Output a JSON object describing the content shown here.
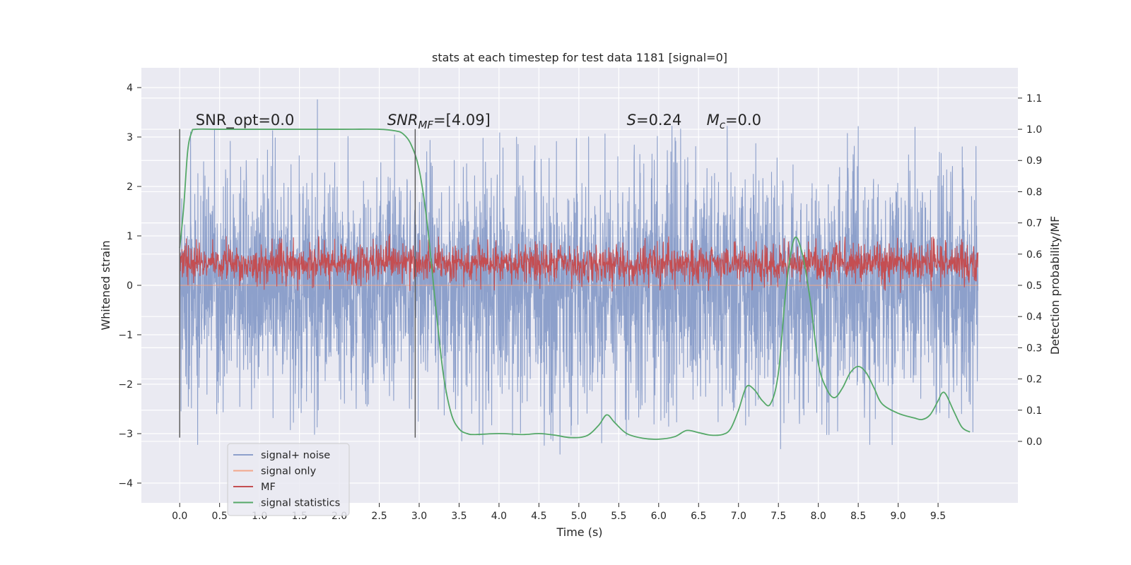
{
  "chart_data": {
    "type": "line",
    "title": "stats at each timestep for test data 1181 [signal=0]",
    "xlabel": "Time (s)",
    "ylabel_left": "Whitened strain",
    "ylabel_right": "Detection probability/MF",
    "xlim": [
      -0.48,
      10.5
    ],
    "ylim_left": [
      -4.4,
      4.4
    ],
    "ylim_right": [
      -0.197,
      1.197
    ],
    "grid": true,
    "xticks": [
      "0.0",
      "0.5",
      "1.0",
      "1.5",
      "2.0",
      "2.5",
      "3.0",
      "3.5",
      "4.0",
      "4.5",
      "5.0",
      "5.5",
      "6.0",
      "6.5",
      "7.0",
      "7.5",
      "8.0",
      "8.5",
      "9.0",
      "9.5"
    ],
    "yticks_left": [
      "−4",
      "−3",
      "−2",
      "−1",
      "0",
      "1",
      "2",
      "3",
      "4"
    ],
    "yticks_right": [
      "0.0",
      "0.1",
      "0.2",
      "0.3",
      "0.4",
      "0.5",
      "0.6",
      "0.7",
      "0.8",
      "0.9",
      "1.0",
      "1.1"
    ],
    "legend_placement": "lower-left",
    "annotations": [
      {
        "text": "SNR_opt=0.0",
        "x": 0.2,
        "y": 3.2
      },
      {
        "text": "SNR",
        "sub": "MF",
        "rest": "=[4.09]",
        "x": 2.6,
        "y": 3.2
      },
      {
        "text": "S",
        "rest": "=0.24",
        "x": 5.6,
        "y": 3.2
      },
      {
        "text": "M",
        "sub": "c",
        "rest": "=0.0",
        "x": 6.6,
        "y": 3.2
      }
    ],
    "vertical_lines": [
      {
        "x": 0.0,
        "y_from": -3.08,
        "y_to": 3.16
      },
      {
        "x": 2.95,
        "y_from": -3.08,
        "y_to": 3.16
      }
    ],
    "series": [
      {
        "name": "signal+ noise",
        "color": "#8da0cb",
        "axis": "left",
        "kind": "noise-band",
        "x_range": [
          0.0,
          10.0
        ],
        "typical_abs": 1.3,
        "max_abs": 4.0
      },
      {
        "name": "signal only",
        "color": "#f2a78a",
        "axis": "left",
        "kind": "flat",
        "x_range": [
          0.0,
          10.0
        ],
        "value": 0.0
      },
      {
        "name": "MF",
        "color": "#c44e52",
        "axis": "right",
        "kind": "noise-band",
        "x_range": [
          0.0,
          10.0
        ],
        "center": 0.57,
        "typical_abs": 0.035,
        "max_abs": 0.095
      },
      {
        "name": "signal statistics",
        "color": "#55a868",
        "axis": "right",
        "kind": "line",
        "x": [
          0.0,
          0.05,
          0.1,
          0.15,
          0.2,
          0.5,
          1.0,
          1.5,
          2.0,
          2.5,
          2.7,
          2.8,
          2.9,
          3.0,
          3.1,
          3.2,
          3.3,
          3.4,
          3.5,
          3.6,
          3.7,
          4.0,
          4.3,
          4.5,
          4.7,
          4.9,
          5.1,
          5.25,
          5.35,
          5.45,
          5.6,
          5.8,
          6.0,
          6.2,
          6.35,
          6.5,
          6.65,
          6.8,
          6.9,
          7.0,
          7.1,
          7.2,
          7.3,
          7.4,
          7.5,
          7.6,
          7.7,
          7.8,
          7.9,
          8.0,
          8.1,
          8.2,
          8.3,
          8.4,
          8.5,
          8.6,
          8.7,
          8.8,
          9.0,
          9.2,
          9.3,
          9.4,
          9.5,
          9.55,
          9.6,
          9.7,
          9.8,
          9.9
        ],
        "y": [
          0.62,
          0.75,
          0.93,
          0.99,
          1.0,
          1.0,
          1.0,
          1.0,
          1.0,
          1.0,
          0.995,
          0.985,
          0.95,
          0.87,
          0.7,
          0.45,
          0.22,
          0.09,
          0.04,
          0.025,
          0.022,
          0.025,
          0.022,
          0.025,
          0.02,
          0.012,
          0.018,
          0.052,
          0.085,
          0.06,
          0.025,
          0.01,
          0.007,
          0.015,
          0.035,
          0.028,
          0.02,
          0.022,
          0.04,
          0.1,
          0.175,
          0.165,
          0.13,
          0.12,
          0.22,
          0.5,
          0.65,
          0.6,
          0.45,
          0.25,
          0.17,
          0.14,
          0.17,
          0.22,
          0.24,
          0.22,
          0.17,
          0.12,
          0.09,
          0.075,
          0.07,
          0.085,
          0.13,
          0.155,
          0.15,
          0.095,
          0.045,
          0.03
        ]
      }
    ]
  }
}
